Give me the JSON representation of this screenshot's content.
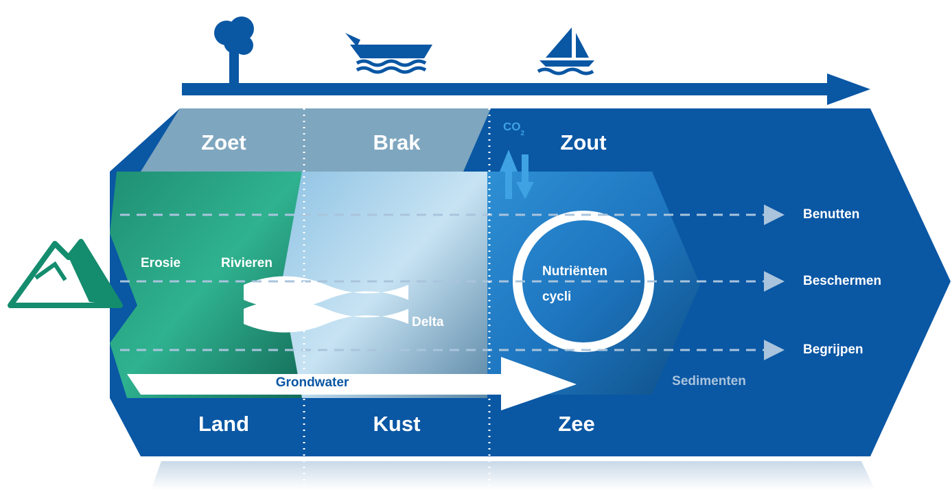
{
  "zones_top": [
    "Zoet",
    "Brak",
    "Zout"
  ],
  "co2": {
    "text": "CO",
    "subscript": "2"
  },
  "labels": {
    "erosie": "Erosie",
    "rivieren": "Rivieren",
    "delta": "Delta",
    "nutrienten": [
      "Nutriënten",
      "cycli"
    ],
    "grondwater": "Grondwater",
    "sedimenten": "Sedimenten"
  },
  "actions": [
    "Benutten",
    "Beschermen",
    "Begrijpen"
  ],
  "zones_bottom": [
    "Land",
    "Kust",
    "Zee"
  ]
}
